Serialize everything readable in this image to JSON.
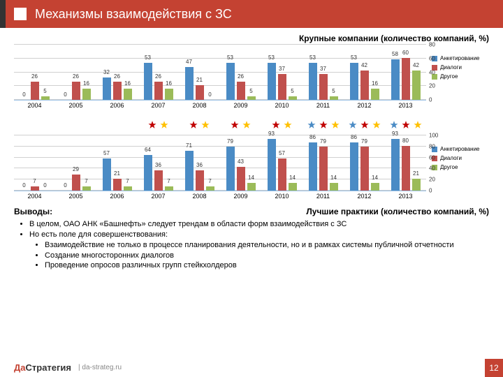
{
  "header": {
    "title": "Механизмы взаимодействия с ЗС"
  },
  "chart1": {
    "title": "Крупные компании (количество компаний, %)",
    "ymax": 80,
    "ytick_step": 20,
    "series_colors": [
      "#4a8bc5",
      "#c0504d",
      "#9bbb59"
    ],
    "series_labels": [
      "Анкетирование",
      "Диалоги",
      "Другое"
    ],
    "years": [
      "2004",
      "2005",
      "2006",
      "2007",
      "2008",
      "2009",
      "2010",
      "2011",
      "2012",
      "2013"
    ],
    "data": [
      [
        0,
        26,
        5
      ],
      [
        0,
        26,
        16
      ],
      [
        32,
        26,
        16
      ],
      [
        53,
        26,
        16
      ],
      [
        47,
        21,
        0
      ],
      [
        53,
        26,
        5
      ],
      [
        53,
        37,
        5
      ],
      [
        53,
        37,
        5
      ],
      [
        53,
        42,
        16
      ],
      [
        58,
        60,
        42
      ]
    ]
  },
  "stars": {
    "colors": {
      "red": "#c00000",
      "yellow": "#ffc000",
      "blue": "#4a8bc5"
    },
    "pattern": [
      [],
      [],
      [],
      [
        "red",
        "yellow"
      ],
      [
        "red",
        "yellow"
      ],
      [
        "red",
        "yellow"
      ],
      [
        "red",
        "yellow"
      ],
      [
        "blue",
        "red",
        "yellow"
      ],
      [
        "blue",
        "red",
        "yellow"
      ],
      [
        "blue",
        "red",
        "yellow"
      ]
    ]
  },
  "chart2": {
    "ymax": 100,
    "ytick_step": 20,
    "series_colors": [
      "#4a8bc5",
      "#c0504d",
      "#9bbb59"
    ],
    "series_labels": [
      "Анкетирование",
      "Диалоги",
      "Другое"
    ],
    "years": [
      "2004",
      "2005",
      "2006",
      "2007",
      "2008",
      "2009",
      "2010",
      "2011",
      "2012",
      "2013"
    ],
    "data": [
      [
        0,
        7,
        0
      ],
      [
        0,
        29,
        7
      ],
      [
        57,
        21,
        7
      ],
      [
        64,
        36,
        7
      ],
      [
        71,
        36,
        7
      ],
      [
        79,
        43,
        14
      ],
      [
        93,
        57,
        14
      ],
      [
        86,
        79,
        14
      ],
      [
        86,
        79,
        14
      ],
      [
        93,
        80,
        21
      ]
    ]
  },
  "conclusions": {
    "title": "Выводы:",
    "subtitle": "Лучшие практики (количество компаний, %)",
    "bullets": [
      "В целом, ОАО АНК «Башнефть» следует трендам в области форм взаимодействия с ЗС",
      "Но есть поле для совершенствования:"
    ],
    "sub_bullets": [
      "Взаимодействие не только в процессе планирования деятельности, но и в рамках системы публичной отчетности",
      "Создание многосторонних диалогов",
      "Проведение опросов различных групп стейкхолдеров"
    ]
  },
  "footer": {
    "logo_da": "Да",
    "logo_st": "Стратегия",
    "site": "da-strateg.ru",
    "page": "12"
  }
}
